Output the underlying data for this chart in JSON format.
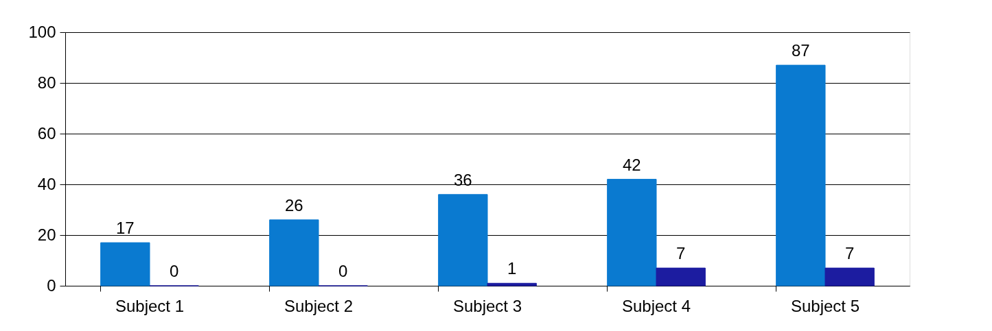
{
  "chart_data": {
    "type": "bar",
    "categories": [
      "Subject 1",
      "Subject 2",
      "Subject 3",
      "Subject 4",
      "Subject 5"
    ],
    "series": [
      {
        "color": "#0a7ad0",
        "values": [
          17,
          26,
          36,
          42,
          87
        ]
      },
      {
        "color": "#1c1ca0",
        "values": [
          0,
          0,
          1,
          7,
          7
        ]
      }
    ],
    "ylim": [
      0,
      100
    ],
    "yticks": [
      0,
      20,
      40,
      60,
      80,
      100
    ],
    "grid": "y",
    "data_labels": true,
    "legend": false
  }
}
